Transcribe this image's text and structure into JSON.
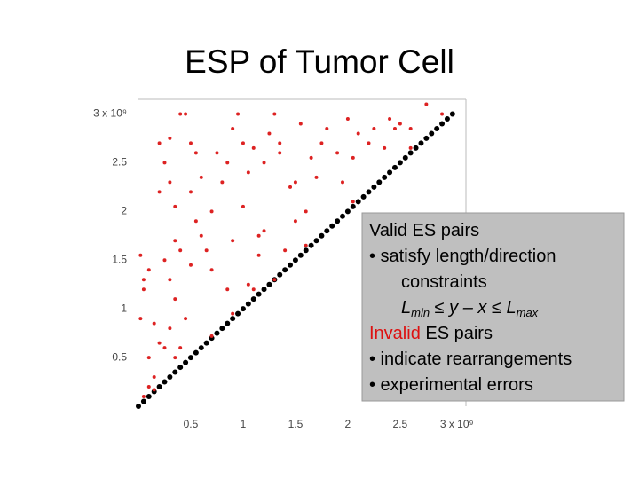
{
  "chart_data": {
    "type": "scatter",
    "title": "ESP of Tumor Cell",
    "xlim": [
      0,
      3.12
    ],
    "ylim": [
      0,
      3.15
    ],
    "xticks": [
      0.5,
      1,
      1.5,
      2,
      2.5,
      {
        "value": 3,
        "label": "3 x 10⁹"
      }
    ],
    "yticks": [
      0.5,
      1,
      1.5,
      2,
      2.5,
      {
        "value": 3,
        "label": "3 x 10⁹"
      }
    ],
    "grid": false,
    "series": [
      {
        "color": "#000000",
        "x": [
          0,
          0.05,
          0.1,
          0.15,
          0.2,
          0.25,
          0.3,
          0.35,
          0.4,
          0.45,
          0.5,
          0.55,
          0.6,
          0.65,
          0.7,
          0.75,
          0.8,
          0.85,
          0.9,
          0.95,
          1,
          1.05,
          1.1,
          1.15,
          1.2,
          1.25,
          1.3,
          1.35,
          1.4,
          1.45,
          1.5,
          1.55,
          1.6,
          1.65,
          1.7,
          1.75,
          1.8,
          1.85,
          1.9,
          1.95,
          2,
          2.05,
          2.1,
          2.15,
          2.2,
          2.25,
          2.3,
          2.35,
          2.4,
          2.45,
          2.5,
          2.55,
          2.6,
          2.65,
          2.7,
          2.75,
          2.8,
          2.85,
          2.9,
          2.95,
          3
        ],
        "values": [
          0,
          0.05,
          0.1,
          0.15,
          0.2,
          0.25,
          0.3,
          0.35,
          0.4,
          0.45,
          0.5,
          0.55,
          0.6,
          0.65,
          0.7,
          0.75,
          0.8,
          0.85,
          0.9,
          0.95,
          1,
          1.05,
          1.1,
          1.15,
          1.2,
          1.25,
          1.3,
          1.35,
          1.4,
          1.45,
          1.5,
          1.55,
          1.6,
          1.65,
          1.7,
          1.75,
          1.8,
          1.85,
          1.9,
          1.95,
          2,
          2.05,
          2.1,
          2.15,
          2.2,
          2.25,
          2.3,
          2.35,
          2.4,
          2.45,
          2.5,
          2.55,
          2.6,
          2.65,
          2.7,
          2.75,
          2.8,
          2.85,
          2.9,
          2.95,
          3
        ]
      },
      {
        "color": "#dd2222",
        "x": [
          0.1,
          0.05,
          0.05,
          0.02,
          0.15,
          0.2,
          0.25,
          0.15,
          0.1,
          0.2,
          0.2,
          0.3,
          0.25,
          0.3,
          0.35,
          0.4,
          0.45,
          0.35,
          0.4,
          0.25,
          0.3,
          0.35,
          0.45,
          0.3,
          0.35,
          0.4,
          0.5,
          0.55,
          0.6,
          0.5,
          0.55,
          0.6,
          0.5,
          0.65,
          0.7,
          0.7,
          0.75,
          0.8,
          0.85,
          0.9,
          0.85,
          0.95,
          0.9,
          1.0,
          1.05,
          1.0,
          1.1,
          1.15,
          1.2,
          1.05,
          1.15,
          1.2,
          1.3,
          1.35,
          1.25,
          1.45,
          1.3,
          1.35,
          1.4,
          1.5,
          1.5,
          1.55,
          1.6,
          1.65,
          1.7,
          1.75,
          1.8,
          1.9,
          1.95,
          2.05,
          2.1,
          2.2,
          2.25,
          2.35,
          2.45,
          2.5,
          2.4,
          2.6,
          2.75,
          2.0,
          0.02,
          0.1,
          0.05,
          0.9,
          1.1,
          1.6,
          2.05,
          2.6,
          0.7,
          0.15,
          2.9
        ],
        "values": [
          1.4,
          1.3,
          1.2,
          0.9,
          0.85,
          0.65,
          0.6,
          0.3,
          0.2,
          2.7,
          2.2,
          2.75,
          2.5,
          2.3,
          2.05,
          3.0,
          3.0,
          1.7,
          1.6,
          1.5,
          1.3,
          1.1,
          0.9,
          0.8,
          0.5,
          0.6,
          2.7,
          2.6,
          2.35,
          2.2,
          1.9,
          1.75,
          1.45,
          1.6,
          2.0,
          1.4,
          2.6,
          2.3,
          2.5,
          1.7,
          1.2,
          3.0,
          2.85,
          2.7,
          2.4,
          2.05,
          2.65,
          1.75,
          1.8,
          1.25,
          1.55,
          2.5,
          3.0,
          2.6,
          2.8,
          2.25,
          1.3,
          2.7,
          1.6,
          2.3,
          1.9,
          2.9,
          2.0,
          2.55,
          2.35,
          2.7,
          2.85,
          2.6,
          2.3,
          2.55,
          2.8,
          2.7,
          2.85,
          2.65,
          2.85,
          2.9,
          2.95,
          2.85,
          3.1,
          2.95,
          1.55,
          0.5,
          0.1,
          0.95,
          1.2,
          1.65,
          2.1,
          2.65,
          0.72,
          0.17,
          3.0
        ]
      }
    ]
  },
  "annotation": {
    "lines": [
      "Valid ES pairs",
      "• satisfy length/direction",
      "constraints"
    ],
    "formula": [
      "L",
      "min",
      " ≤ y – x ≤ ",
      "L",
      "max"
    ],
    "invalid": "Invalid",
    "invalid_rest": " ES pairs",
    "invalid_items": [
      "• indicate rearrangements",
      "• experimental errors"
    ]
  }
}
